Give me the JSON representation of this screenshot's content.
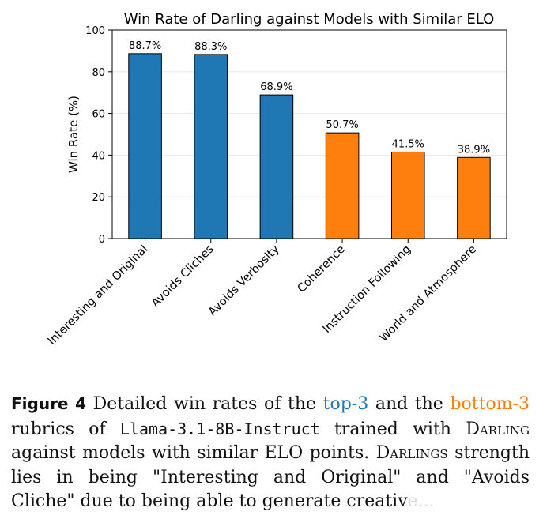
{
  "chart_data": {
    "type": "bar",
    "title": "Win Rate of Darling against Models with Similar ELO",
    "xlabel": "",
    "ylabel": "Win Rate (%)",
    "ylim": [
      0,
      100
    ],
    "yticks": [
      "0",
      "20",
      "40",
      "60",
      "80",
      "100"
    ],
    "grid": "horizontal",
    "categories": [
      "Interesting and Original",
      "Avoids Cliches",
      "Avoids Verbosity",
      "Coherence",
      "Instruction Following",
      "World and Atmosphere"
    ],
    "values": [
      88.7,
      88.3,
      68.9,
      50.7,
      41.5,
      38.9
    ],
    "data_labels": [
      "88.7%",
      "88.3%",
      "68.9%",
      "50.7%",
      "41.5%",
      "38.9%"
    ],
    "bar_colors": [
      "#1f77b4",
      "#1f77b4",
      "#1f77b4",
      "#ff7f0e",
      "#ff7f0e",
      "#ff7f0e"
    ]
  },
  "caption": {
    "label": "Figure 4",
    "t1": " Detailed win rates of the ",
    "top3": "top-3",
    "t2": " and the ",
    "bottom3": "bottom-3",
    "t3": " rubrics of ",
    "model": "Llama-3.1-8B-Instruct",
    "t4": " trained with ",
    "darling1": "Darling",
    "t5": " against models with similar ELO points. ",
    "darling2": "Darlings",
    "t6": " strength lies in being \"Interesting and Original\" and \"Avoids Cliche\" due to being able to generate creativ",
    "t7": "e...",
    "colors": {
      "top": "#1f77b4",
      "bottom": "#ff7f0e"
    }
  }
}
